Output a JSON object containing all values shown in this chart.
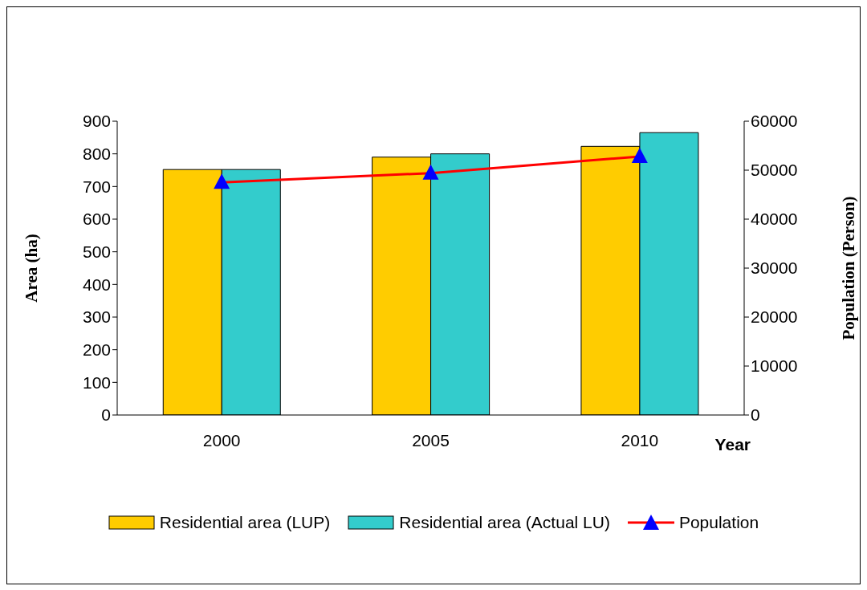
{
  "chart_data": {
    "type": "bar",
    "xlabel": "Year",
    "ylabel": "Area (ha)",
    "y2label": "Population (Person)",
    "categories": [
      "2000",
      "2005",
      "2010"
    ],
    "series": [
      {
        "name": "Residential area (LUP)",
        "color": "#ffcc00",
        "values": [
          752,
          790,
          823
        ]
      },
      {
        "name": "Residential area (Actual LU)",
        "color": "#33cccc",
        "values": [
          752,
          800,
          865
        ]
      },
      {
        "name": "Population",
        "type": "line",
        "axis": "y2",
        "color": "#ff0000",
        "colors": [
          "#0000ff",
          "#0000ff",
          "#0000ff"
        ],
        "marker": "triangle",
        "values": [
          47500,
          49400,
          52800
        ]
      }
    ],
    "ylim": [
      0,
      900
    ],
    "yticks": [
      0,
      100,
      200,
      300,
      400,
      500,
      600,
      700,
      800,
      900
    ],
    "y2lim": [
      0,
      60000
    ],
    "y2ticks": [
      0,
      10000,
      20000,
      30000,
      40000,
      50000,
      60000
    ],
    "legend": "bottom"
  }
}
